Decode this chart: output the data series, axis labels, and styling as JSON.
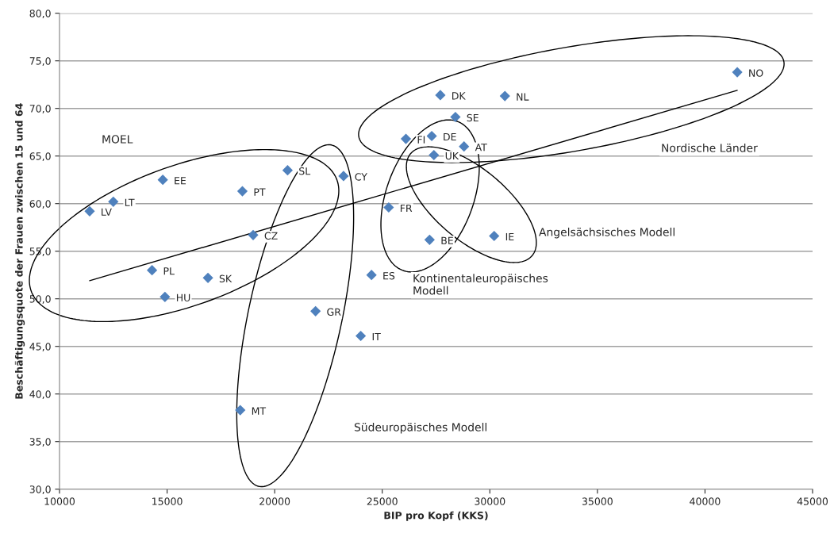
{
  "chart_data": {
    "type": "scatter",
    "xlabel": "BIP pro Kopf (KKS)",
    "ylabel": "Beschäftigungsquote der Frauen zwischen 15 und 64",
    "xlim": [
      10000,
      45000
    ],
    "xticks": [
      10000,
      15000,
      20000,
      25000,
      30000,
      35000,
      40000,
      45000
    ],
    "ylim": [
      30,
      80
    ],
    "yticks": [
      {
        "value": 30,
        "label": "30,0"
      },
      {
        "value": 35,
        "label": "35,0"
      },
      {
        "value": 40,
        "label": "40,0"
      },
      {
        "value": 45,
        "label": "45,0"
      },
      {
        "value": 50,
        "label": "50,0"
      },
      {
        "value": 55,
        "label": "55,0"
      },
      {
        "value": 60,
        "label": "60,0"
      },
      {
        "value": 65,
        "label": "65,0"
      },
      {
        "value": 70,
        "label": "70,0"
      },
      {
        "value": 75,
        "label": "75,0"
      },
      {
        "value": 80,
        "label": "80,0"
      }
    ],
    "grid": "y",
    "legend": false,
    "marker": "diamond",
    "series": [
      {
        "color": "#4f81bd",
        "x": [
          11400,
          12500,
          14800,
          18500,
          20600,
          23200,
          19000,
          14300,
          16900,
          14900,
          21900,
          27700,
          30700,
          28400,
          26100,
          27300,
          28800,
          27400,
          25300,
          27200,
          30200,
          24500,
          24000,
          41500,
          18400
        ],
        "values": [
          59.2,
          60.2,
          62.5,
          61.3,
          63.5,
          62.9,
          56.7,
          53.0,
          52.2,
          50.2,
          48.7,
          71.4,
          71.3,
          69.1,
          66.8,
          67.1,
          66.0,
          65.1,
          59.6,
          56.2,
          56.6,
          52.5,
          46.1,
          73.8,
          38.3
        ],
        "value_labels": [
          "LV",
          "LT",
          "EE",
          "PT",
          "SL",
          "CY",
          "CZ",
          "PL",
          "SK",
          "HU",
          "GR",
          "DK",
          "NL",
          "SE",
          "FI",
          "DE",
          "AT",
          "UK",
          "FR",
          "BE",
          "IE",
          "ES",
          "IT",
          "NO",
          "MT"
        ]
      },
      {
        "type": "line",
        "color": "#000000",
        "marker": "none",
        "line_style": "solid",
        "x": [
          11400,
          41500
        ],
        "values": [
          51.9,
          71.9
        ]
      }
    ],
    "annotations": [
      "MOEL",
      "Nordische Länder",
      "Angelsächsisches Modell",
      "Kontinentaleuropäisches\nModell",
      "Südeuropäisches Modell"
    ]
  }
}
